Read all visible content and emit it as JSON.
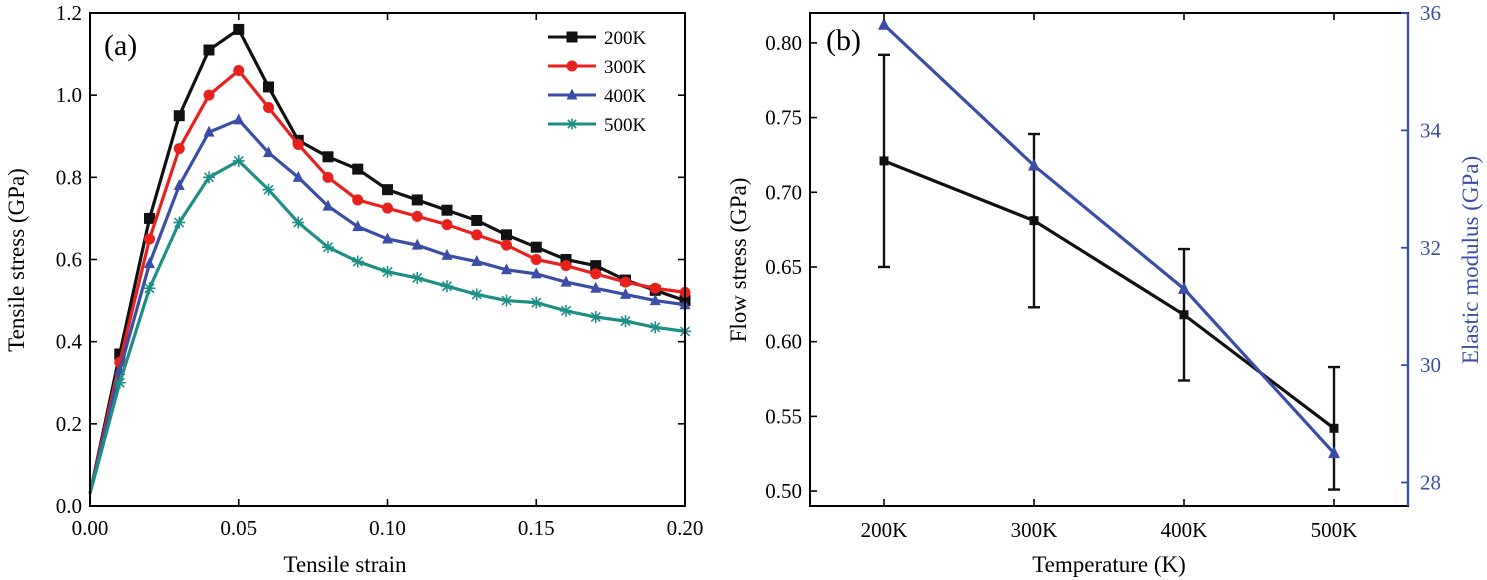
{
  "chart_data": [
    {
      "type": "line",
      "panel_label": "(a)",
      "xlabel": "Tensile strain",
      "ylabel": "Tensile stress (GPa)",
      "xlim": [
        0,
        0.2
      ],
      "ylim": [
        0,
        1.2
      ],
      "xticks": [
        0,
        0.05,
        0.1,
        0.15,
        0.2
      ],
      "xtick_labels": [
        "0.00",
        "0.05",
        "0.10",
        "0.15",
        "0.20"
      ],
      "yticks": [
        0,
        0.2,
        0.4,
        0.6,
        0.8,
        1.0,
        1.2
      ],
      "ytick_labels": [
        "0.0",
        "0.2",
        "0.4",
        "0.6",
        "0.8",
        "1.0",
        "1.2"
      ],
      "legend_position": "top-right",
      "x": [
        0.0,
        0.01,
        0.02,
        0.03,
        0.04,
        0.05,
        0.06,
        0.07,
        0.08,
        0.09,
        0.1,
        0.11,
        0.12,
        0.13,
        0.14,
        0.15,
        0.16,
        0.17,
        0.18,
        0.19,
        0.2
      ],
      "series": [
        {
          "name": "200K",
          "color": "#111111",
          "marker": "square",
          "values": [
            0.03,
            0.37,
            0.7,
            0.95,
            1.11,
            1.16,
            1.02,
            0.89,
            0.85,
            0.82,
            0.77,
            0.745,
            0.72,
            0.695,
            0.66,
            0.63,
            0.6,
            0.585,
            0.55,
            0.525,
            0.5
          ]
        },
        {
          "name": "300K",
          "color": "#e8211d",
          "marker": "circle",
          "values": [
            0.03,
            0.35,
            0.65,
            0.87,
            1.0,
            1.06,
            0.97,
            0.88,
            0.8,
            0.745,
            0.725,
            0.705,
            0.685,
            0.66,
            0.635,
            0.6,
            0.585,
            0.565,
            0.545,
            0.53,
            0.52
          ]
        },
        {
          "name": "400K",
          "color": "#3a4ea6",
          "marker": "triangle",
          "values": [
            0.03,
            0.33,
            0.59,
            0.78,
            0.91,
            0.94,
            0.86,
            0.8,
            0.73,
            0.68,
            0.65,
            0.635,
            0.61,
            0.595,
            0.575,
            0.565,
            0.545,
            0.53,
            0.515,
            0.5,
            0.49
          ]
        },
        {
          "name": "500K",
          "color": "#1e8f86",
          "marker": "star",
          "values": [
            0.03,
            0.3,
            0.53,
            0.69,
            0.8,
            0.84,
            0.77,
            0.69,
            0.63,
            0.595,
            0.57,
            0.555,
            0.535,
            0.515,
            0.5,
            0.495,
            0.475,
            0.46,
            0.45,
            0.435,
            0.425
          ]
        }
      ]
    },
    {
      "type": "line",
      "panel_label": "(b)",
      "xlabel": "Temperature (K)",
      "ylabel": "Flow stress (GPa)",
      "y2label": "Elastic modulus (GPa)",
      "categories": [
        "200K",
        "300K",
        "400K",
        "500K"
      ],
      "ylim": [
        0.49,
        0.82
      ],
      "yticks": [
        0.5,
        0.55,
        0.6,
        0.65,
        0.7,
        0.75,
        0.8
      ],
      "ytick_labels": [
        "0.50",
        "0.55",
        "0.60",
        "0.65",
        "0.70",
        "0.75",
        "0.80"
      ],
      "y2lim": [
        27.6,
        36.0
      ],
      "y2ticks": [
        28,
        30,
        32,
        34,
        36
      ],
      "y2tick_labels": [
        "28",
        "30",
        "32",
        "34",
        "36"
      ],
      "series": [
        {
          "name": "Flow stress",
          "axis": "left",
          "color": "#111111",
          "marker": "square",
          "values": [
            0.721,
            0.681,
            0.618,
            0.542
          ],
          "error_low": [
            0.65,
            0.623,
            0.574,
            0.501
          ],
          "error_high": [
            0.792,
            0.739,
            0.662,
            0.583
          ]
        },
        {
          "name": "Elastic modulus",
          "axis": "right",
          "color": "#3a4ea6",
          "marker": "triangle",
          "values": [
            35.8,
            33.4,
            31.3,
            28.5
          ]
        }
      ]
    }
  ]
}
